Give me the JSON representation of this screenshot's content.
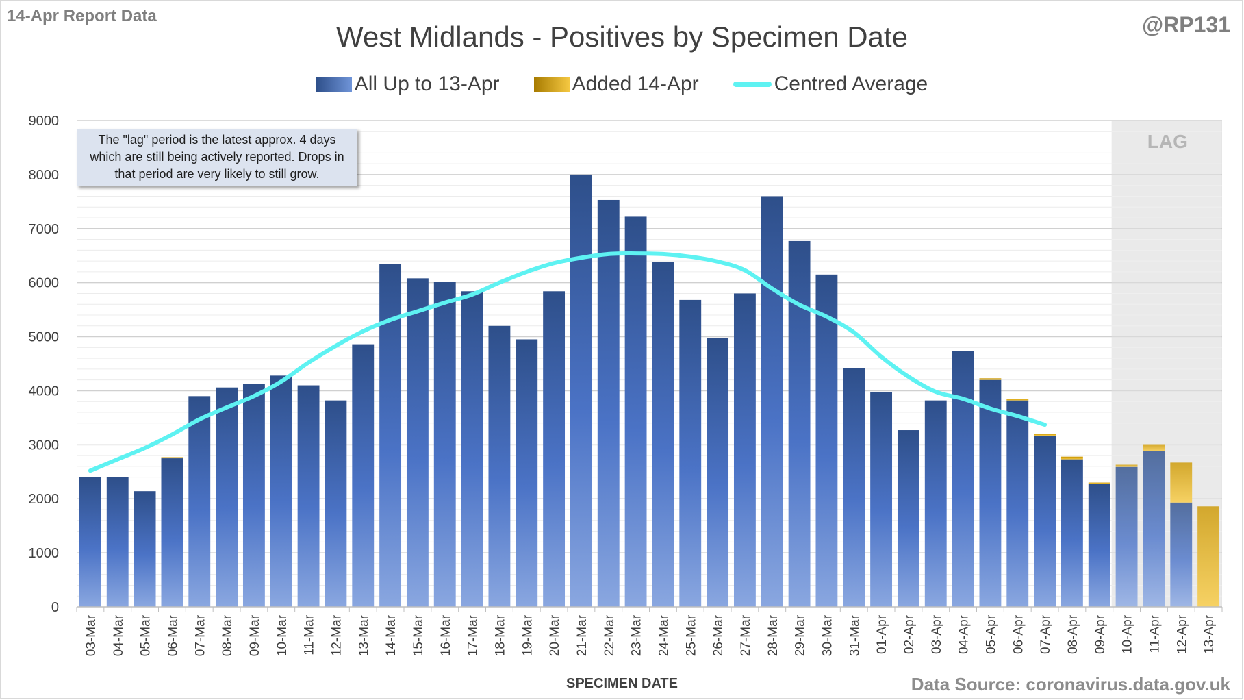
{
  "header": {
    "report_label": "14-Apr Report Data",
    "handle": "@RP131",
    "source": "Data Source: coronavirus.data.gov.uk"
  },
  "colors": {
    "base_bar_dark": "#2e4f8a",
    "base_bar_light": "#8aa7e0",
    "added_bar_dark": "#c99500",
    "added_bar_light": "#f5c842",
    "average_line": "#5ef2f2",
    "lag_shade": "#e6e6e6"
  },
  "annotation": {
    "text": "The \"lag\" period is the latest approx. 4 days which are still being actively reported.  Drops in that period are very likely to still grow."
  },
  "lag_label": "LAG",
  "chart_data": {
    "type": "bar",
    "title": "West Midlands - Positives by Specimen Date",
    "xlabel": "SPECIMEN DATE",
    "ylabel": "",
    "ylim": [
      0,
      9000
    ],
    "yticks": [
      0,
      1000,
      2000,
      3000,
      4000,
      5000,
      6000,
      7000,
      8000,
      9000
    ],
    "grid": true,
    "legend_position": "top",
    "stacked": true,
    "categories": [
      "03-Mar",
      "04-Mar",
      "05-Mar",
      "06-Mar",
      "07-Mar",
      "08-Mar",
      "09-Mar",
      "10-Mar",
      "11-Mar",
      "12-Mar",
      "13-Mar",
      "14-Mar",
      "15-Mar",
      "16-Mar",
      "17-Mar",
      "18-Mar",
      "19-Mar",
      "20-Mar",
      "21-Mar",
      "22-Mar",
      "23-Mar",
      "24-Mar",
      "25-Mar",
      "26-Mar",
      "27-Mar",
      "28-Mar",
      "29-Mar",
      "30-Mar",
      "31-Mar",
      "01-Apr",
      "02-Apr",
      "03-Apr",
      "04-Apr",
      "05-Apr",
      "06-Apr",
      "07-Apr",
      "08-Apr",
      "09-Apr",
      "10-Apr",
      "11-Apr",
      "12-Apr",
      "13-Apr"
    ],
    "series": [
      {
        "name": "All Up to 13-Apr",
        "values": [
          2400,
          2400,
          2140,
          2750,
          3900,
          4060,
          4130,
          4280,
          4100,
          3820,
          4860,
          6350,
          6080,
          6020,
          5840,
          5200,
          4950,
          5840,
          8000,
          7530,
          7220,
          6380,
          5680,
          4980,
          5800,
          7600,
          6770,
          6150,
          4420,
          3980,
          3270,
          3820,
          4740,
          4200,
          3820,
          3170,
          2730,
          2280,
          2590,
          2880,
          1930,
          0
        ]
      },
      {
        "name": "Added 14-Apr",
        "values": [
          0,
          0,
          0,
          20,
          0,
          0,
          0,
          0,
          0,
          0,
          0,
          0,
          0,
          0,
          0,
          0,
          0,
          0,
          0,
          0,
          0,
          0,
          0,
          0,
          0,
          0,
          0,
          0,
          0,
          0,
          0,
          0,
          0,
          30,
          30,
          30,
          50,
          20,
          40,
          130,
          740,
          1860
        ]
      },
      {
        "name": "Centred Average",
        "type": "line",
        "values": [
          2520,
          2730,
          2940,
          3190,
          3470,
          3690,
          3900,
          4170,
          4520,
          4830,
          5100,
          5310,
          5470,
          5630,
          5780,
          6000,
          6200,
          6360,
          6460,
          6530,
          6540,
          6530,
          6480,
          6390,
          6230,
          5890,
          5590,
          5370,
          5080,
          4630,
          4260,
          3980,
          3850,
          3670,
          3530,
          3370,
          null,
          null,
          null,
          null,
          null,
          null
        ]
      }
    ],
    "lag_region": [
      "10-Apr",
      "13-Apr"
    ]
  }
}
